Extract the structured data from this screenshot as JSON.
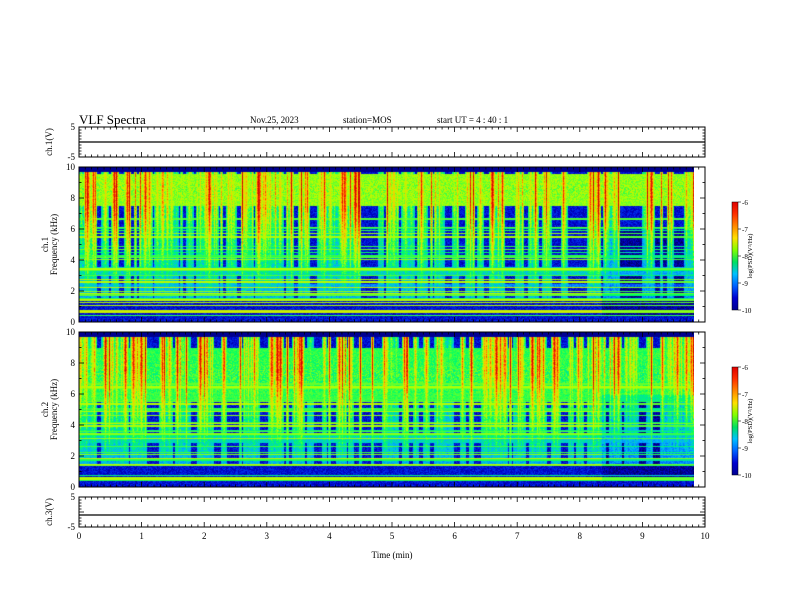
{
  "header": {
    "title": "VLF Spectra",
    "date": "Nov.25, 2023",
    "station": "station=MOS",
    "start_ut": "start UT =   4 : 40 : 1"
  },
  "colors": {
    "spectrum_stops": [
      "#00003c",
      "#0000c8",
      "#0050ff",
      "#00b4ff",
      "#00ff64",
      "#b4ff00",
      "#ffc800",
      "#ff3000",
      "#c80000"
    ],
    "colorbar": [
      "#e00000",
      "#ff3000",
      "#ff8800",
      "#ffe000",
      "#80ff00",
      "#00e060",
      "#00c0ff",
      "#0060ff",
      "#0000d0",
      "#000090"
    ]
  },
  "chart_data": [
    {
      "type": "line",
      "name": "ch1-waveform",
      "ylabel": "ch.1(V)",
      "xlim": [
        0,
        10
      ],
      "ylim": [
        -5,
        5
      ],
      "yticks": [
        5,
        -5
      ],
      "x": [
        0,
        10
      ],
      "y": [
        0,
        0
      ]
    },
    {
      "type": "heatmap",
      "name": "ch1-spectrogram",
      "ylabel": "ch.1\nFrequency (kHz)",
      "xlim": [
        0,
        9.82
      ],
      "ylim": [
        0,
        10
      ],
      "yticks": [
        10,
        8,
        6,
        4,
        2,
        0
      ],
      "colorbar": {
        "label": "log(PSD)(V²/Hz)",
        "range": [
          -10,
          -6
        ],
        "ticks": [
          "-6",
          "-7",
          "-8",
          "-9",
          "-10"
        ]
      },
      "bands": [
        {
          "f_low": 7.5,
          "f_high": 9.6,
          "level": -7.6
        },
        {
          "f_low": 3.0,
          "f_high": 3.6,
          "level": -8.3
        },
        {
          "f_low": 2.2,
          "f_high": 2.5,
          "level": -8.7
        }
      ]
    },
    {
      "type": "heatmap",
      "name": "ch2-spectrogram",
      "ylabel": "ch.2\nFrequency (kHz)",
      "xlim": [
        0,
        9.82
      ],
      "ylim": [
        0,
        10
      ],
      "yticks": [
        10,
        8,
        6,
        4,
        2,
        0
      ],
      "colorbar": {
        "label": "log(PSD)(V²/Hz)",
        "range": [
          -10,
          -6
        ],
        "ticks": [
          "-6",
          "-7",
          "-8",
          "-9",
          "-10"
        ]
      },
      "bands": [
        {
          "f_low": 5.5,
          "f_high": 9.0,
          "level": -7.9
        },
        {
          "f_low": 2.9,
          "f_high": 3.5,
          "level": -8.3
        }
      ]
    },
    {
      "type": "line",
      "name": "ch3-waveform",
      "ylabel": "ch.3(V)",
      "xlim": [
        0,
        10
      ],
      "ylim": [
        -5,
        5
      ],
      "yticks": [
        5,
        -5
      ],
      "x": [
        0,
        10
      ],
      "y": [
        -1,
        -1
      ]
    }
  ],
  "xaxis": {
    "label": "Time (min)",
    "ticks": [
      "0",
      "1",
      "2",
      "3",
      "4",
      "5",
      "6",
      "7",
      "8",
      "9",
      "10"
    ]
  }
}
